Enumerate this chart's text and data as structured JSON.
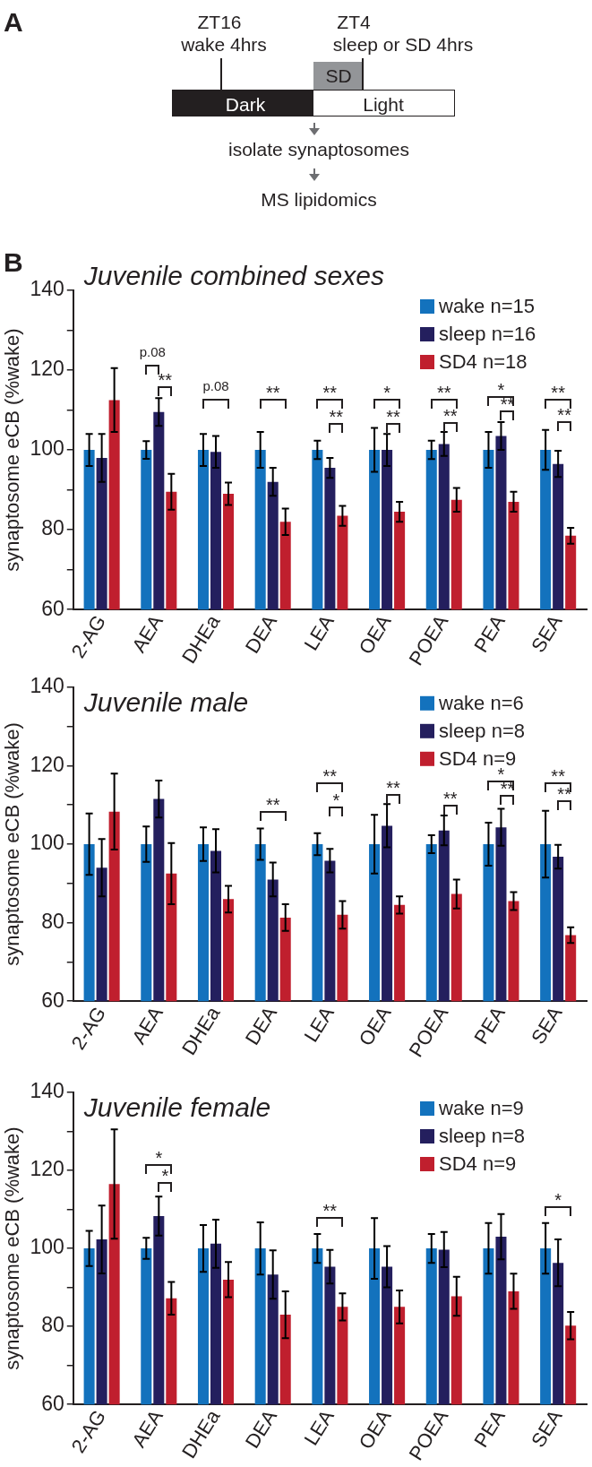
{
  "chart_data": [
    {
      "type": "other",
      "title": "A",
      "annotations": [
        "ZT16",
        "wake 4hrs",
        "ZT4",
        "sleep or SD 4hrs",
        "SD",
        "Dark",
        "Light",
        "isolate synaptosomes",
        "MS lipidomics"
      ]
    },
    {
      "type": "bar",
      "title": "Juvenile combined sexes",
      "ylabel": "synaptosome eCB (%wake)",
      "categories": [
        "2-AG",
        "AEA",
        "DHEa",
        "DEA",
        "LEA",
        "OEA",
        "POEA",
        "PEA",
        "SEA"
      ],
      "series": [
        {
          "name": "wake n=15",
          "color": "#1372bd",
          "values": [
            100,
            100,
            100,
            100,
            100,
            100,
            100,
            100,
            100
          ],
          "errors": [
            4,
            2.2,
            4,
            4.5,
            2.3,
            5.5,
            2.3,
            4.5,
            5
          ]
        },
        {
          "name": "sleep n=16",
          "color": "#241f5e",
          "values": [
            98,
            109.5,
            99.5,
            92,
            95.5,
            100,
            101.5,
            103.5,
            96.5
          ],
          "errors": [
            6,
            3.5,
            4,
            3.5,
            2.5,
            4,
            3,
            3.5,
            3.3
          ]
        },
        {
          "name": "SD4 n=18",
          "color": "#c01f2e",
          "values": [
            112.5,
            89.5,
            89,
            82,
            83.5,
            84.5,
            87.5,
            87,
            78.5
          ],
          "errors": [
            8,
            4.5,
            2.8,
            3.3,
            2.5,
            2.5,
            3,
            2.5,
            2
          ]
        }
      ],
      "ylim": [
        60,
        140
      ],
      "yticks": [
        60,
        {
          "value": 70,
          "label": null
        },
        80,
        {
          "value": 90,
          "label": null
        },
        100,
        {
          "value": 110,
          "label": null
        },
        120,
        {
          "value": 130,
          "label": null
        },
        140
      ],
      "grid": false,
      "legend": "top right",
      "annotations": [
        "B",
        "p.08",
        "**",
        "p.08",
        "**",
        "**",
        "**",
        "*",
        "**",
        "**",
        "**",
        "*",
        "**",
        "**",
        "**"
      ]
    },
    {
      "type": "bar",
      "title": "Juvenile male",
      "ylabel": "synaptosome eCB (%wake)",
      "categories": [
        "2-AG",
        "AEA",
        "DHEa",
        "DEA",
        "LEA",
        "OEA",
        "POEA",
        "PEA",
        "SEA"
      ],
      "series": [
        {
          "name": "wake n=6",
          "color": "#1372bd",
          "values": [
            100,
            100,
            100,
            100,
            100,
            100,
            100,
            100,
            100
          ],
          "errors": [
            7.8,
            4.5,
            4.3,
            4,
            2.8,
            7.5,
            2.3,
            5.5,
            8.5
          ]
        },
        {
          "name": "sleep n=8",
          "color": "#241f5e",
          "values": [
            94,
            111.5,
            98.3,
            91,
            95.8,
            104.7,
            103.5,
            104.3,
            96.8
          ],
          "errors": [
            7.3,
            4.7,
            5.5,
            4.3,
            3,
            5.5,
            3.8,
            4.7,
            3
          ]
        },
        {
          "name": "SD4 n=9",
          "color": "#c01f2e",
          "values": [
            108.3,
            92.5,
            86,
            81.3,
            82,
            84.5,
            87.3,
            85.5,
            76.8
          ],
          "errors": [
            9.7,
            7.8,
            3.4,
            3.4,
            3.5,
            2.2,
            3.7,
            2.3,
            2
          ]
        }
      ],
      "ylim": [
        60,
        140
      ],
      "yticks": [
        60,
        {
          "value": 70,
          "label": null
        },
        80,
        {
          "value": 90,
          "label": null
        },
        100,
        {
          "value": 110,
          "label": null
        },
        120,
        {
          "value": 130,
          "label": null
        },
        140
      ],
      "grid": false,
      "legend": "top right",
      "annotations": [
        "**",
        "**",
        "*",
        "**",
        "**",
        "*",
        "**",
        "**",
        "**"
      ]
    },
    {
      "type": "bar",
      "title": "Juvenile female",
      "ylabel": "synaptosome eCB (%wake)",
      "categories": [
        "2-AG",
        "AEA",
        "DHEa",
        "DEA",
        "LEA",
        "OEA",
        "POEA",
        "PEA",
        "SEA"
      ],
      "series": [
        {
          "name": "wake n=9",
          "color": "#1372bd",
          "values": [
            100,
            100,
            100,
            100,
            100,
            100,
            100,
            100,
            100
          ],
          "errors": [
            4.5,
            2.7,
            6,
            6.7,
            3.7,
            7.8,
            3.7,
            6.5,
            6.5
          ]
        },
        {
          "name": "sleep n=8",
          "color": "#241f5e",
          "values": [
            102.3,
            108.3,
            101.2,
            93.3,
            95.3,
            95.3,
            99.7,
            103,
            96.3
          ],
          "errors": [
            8.7,
            5,
            6.2,
            6.2,
            4.3,
            5.3,
            4.5,
            5.8,
            6
          ]
        },
        {
          "name": "SD4 n=9",
          "color": "#c01f2e",
          "values": [
            116.5,
            87.2,
            92,
            83,
            85,
            85,
            87.7,
            89,
            80.2
          ],
          "errors": [
            14,
            4.2,
            4.5,
            6,
            3.5,
            4.2,
            5,
            4.5,
            3.5
          ]
        }
      ],
      "ylim": [
        60,
        140
      ],
      "yticks": [
        60,
        {
          "value": 70,
          "label": null
        },
        80,
        {
          "value": 90,
          "label": null
        },
        100,
        {
          "value": 110,
          "label": null
        },
        120,
        {
          "value": 130,
          "label": null
        },
        140
      ],
      "grid": false,
      "legend": "top right",
      "annotations": [
        "*",
        "*",
        "**",
        "*"
      ]
    }
  ]
}
